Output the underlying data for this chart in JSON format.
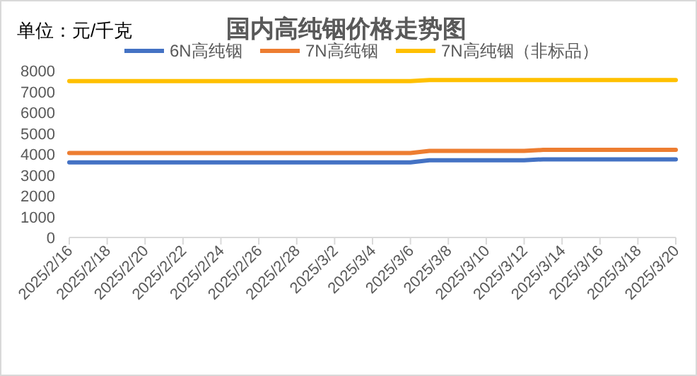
{
  "chart_data": {
    "type": "line",
    "title": "国内高纯铟价格走势图",
    "ylabel": "单位：元/千克",
    "x": [
      "2025-02-16",
      "2025-03-06",
      "2025-03-07",
      "2025-03-12",
      "2025-03-13",
      "2025-03-20"
    ],
    "series": [
      {
        "name": "6N高纯铟",
        "color": "#4472c4",
        "values": [
          3600,
          3600,
          3700,
          3700,
          3750,
          3750
        ]
      },
      {
        "name": "7N高纯铟",
        "color": "#ed7d31",
        "values": [
          4050,
          4050,
          4150,
          4150,
          4200,
          4200
        ]
      },
      {
        "name": "7N高纯铟（非标品）",
        "color": "#ffc000",
        "values": [
          7500,
          7500,
          7550,
          7550,
          7550,
          7550
        ]
      }
    ],
    "xlim": [
      "2025-02-16",
      "2025-03-20"
    ],
    "ylim": [
      0,
      8000
    ],
    "xticks": [
      {
        "value": "2025-02-16",
        "label": "2025/2/16"
      },
      {
        "value": "2025-02-18",
        "label": "2025/2/18"
      },
      {
        "value": "2025-02-20",
        "label": "2025/2/20"
      },
      {
        "value": "2025-02-22",
        "label": "2025/2/22"
      },
      {
        "value": "2025-02-24",
        "label": "2025/2/24"
      },
      {
        "value": "2025-02-26",
        "label": "2025/2/26"
      },
      {
        "value": "2025-02-28",
        "label": "2025/2/28"
      },
      {
        "value": "2025-03-02",
        "label": "2025/3/2"
      },
      {
        "value": "2025-03-04",
        "label": "2025/3/4"
      },
      {
        "value": "2025-03-06",
        "label": "2025/3/6"
      },
      {
        "value": "2025-03-08",
        "label": "2025/3/8"
      },
      {
        "value": "2025-03-10",
        "label": "2025/3/10"
      },
      {
        "value": "2025-03-12",
        "label": "2025/3/12"
      },
      {
        "value": "2025-03-14",
        "label": "2025/3/14"
      },
      {
        "value": "2025-03-16",
        "label": "2025/3/16"
      },
      {
        "value": "2025-03-18",
        "label": "2025/3/18"
      },
      {
        "value": "2025-03-20",
        "label": "2025/3/20"
      }
    ],
    "yticks": [
      0,
      1000,
      2000,
      3000,
      4000,
      5000,
      6000,
      7000,
      8000
    ],
    "legend": "top",
    "marker": "none",
    "line_style": "solid"
  }
}
